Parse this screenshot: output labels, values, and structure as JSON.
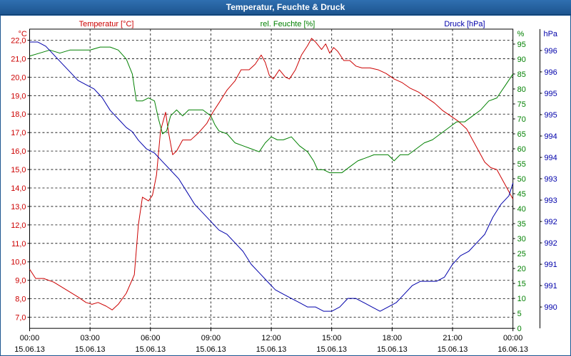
{
  "window_title": "Temperatur, Feuchte & Druck",
  "chart_data": {
    "type": "line",
    "title": "Temperatur, Feuchte & Druck",
    "x_labels": [
      {
        "time": "00:00",
        "date": "15.06.13"
      },
      {
        "time": "03:00",
        "date": "15.06.13"
      },
      {
        "time": "06:00",
        "date": "15.06.13"
      },
      {
        "time": "09:00",
        "date": "15.06.13"
      },
      {
        "time": "12:00",
        "date": "15.06.13"
      },
      {
        "time": "15:00",
        "date": "15.06.13"
      },
      {
        "time": "18:00",
        "date": "15.06.13"
      },
      {
        "time": "21:00",
        "date": "15.06.13"
      },
      {
        "time": "00:00",
        "date": "16.06.13"
      }
    ],
    "xlim_hours": [
      0,
      24
    ],
    "axes": {
      "temperature": {
        "unit": "°C",
        "legend": "Temperatur [°C]",
        "color": "#cc0000",
        "ylim": [
          6.4,
          22.6
        ],
        "ticks": [
          "7,0",
          "8,0",
          "9,0",
          "10,0",
          "11,0",
          "12,0",
          "13,0",
          "14,0",
          "15,0",
          "16,0",
          "17,0",
          "18,0",
          "19,0",
          "20,0",
          "21,0",
          "22,0"
        ]
      },
      "humidity": {
        "unit": "%",
        "legend": "rel. Feuchte [%]",
        "color": "#008000",
        "ylim": [
          0,
          100
        ],
        "ticks": [
          "0",
          "5",
          "10",
          "15",
          "20",
          "25",
          "30",
          "35",
          "40",
          "45",
          "50",
          "55",
          "60",
          "65",
          "70",
          "75",
          "80",
          "85",
          "90",
          "95"
        ]
      },
      "pressure": {
        "unit": "hPa",
        "legend": "Druck [hPa]",
        "color": "#0000aa",
        "ylim": [
          989.5,
          996.5
        ],
        "ticks": [
          {
            "v": 990,
            "l": "990"
          },
          {
            "v": 990.5,
            "l": "991"
          },
          {
            "v": 991,
            "l": "991"
          },
          {
            "v": 991.5,
            "l": "992"
          },
          {
            "v": 992,
            "l": "992"
          },
          {
            "v": 992.5,
            "l": "993"
          },
          {
            "v": 993,
            "l": "993"
          },
          {
            "v": 993.5,
            "l": "994"
          },
          {
            "v": 994,
            "l": "994"
          },
          {
            "v": 994.5,
            "l": "995"
          },
          {
            "v": 995,
            "l": "995"
          },
          {
            "v": 995.5,
            "l": "996"
          },
          {
            "v": 996,
            "l": "996"
          }
        ]
      }
    },
    "series": [
      {
        "name": "Temperatur",
        "axis": "temperature",
        "points": [
          [
            0,
            9.6
          ],
          [
            0.3,
            9.1
          ],
          [
            0.7,
            9.1
          ],
          [
            1.2,
            8.9
          ],
          [
            1.8,
            8.5
          ],
          [
            2.4,
            8.1
          ],
          [
            2.8,
            7.8
          ],
          [
            3.1,
            7.7
          ],
          [
            3.4,
            7.8
          ],
          [
            3.8,
            7.6
          ],
          [
            4.1,
            7.4
          ],
          [
            4.4,
            7.7
          ],
          [
            4.8,
            8.3
          ],
          [
            5.2,
            9.3
          ],
          [
            5.4,
            12.0
          ],
          [
            5.6,
            13.5
          ],
          [
            5.9,
            13.3
          ],
          [
            6.1,
            13.6
          ],
          [
            6.3,
            14.7
          ],
          [
            6.5,
            17.1
          ],
          [
            6.75,
            18.1
          ],
          [
            6.9,
            17.0
          ],
          [
            7.1,
            15.8
          ],
          [
            7.3,
            16.0
          ],
          [
            7.6,
            16.6
          ],
          [
            8.0,
            16.6
          ],
          [
            8.4,
            17.0
          ],
          [
            8.8,
            17.5
          ],
          [
            9.1,
            18.1
          ],
          [
            9.4,
            18.6
          ],
          [
            9.8,
            19.3
          ],
          [
            10.2,
            19.8
          ],
          [
            10.5,
            20.4
          ],
          [
            10.9,
            20.4
          ],
          [
            11.2,
            20.7
          ],
          [
            11.5,
            21.2
          ],
          [
            11.7,
            20.8
          ],
          [
            11.9,
            20.1
          ],
          [
            12.1,
            19.9
          ],
          [
            12.4,
            20.4
          ],
          [
            12.7,
            20.0
          ],
          [
            12.9,
            19.9
          ],
          [
            13.2,
            20.4
          ],
          [
            13.5,
            21.2
          ],
          [
            13.8,
            21.7
          ],
          [
            14.0,
            22.1
          ],
          [
            14.2,
            21.9
          ],
          [
            14.5,
            21.5
          ],
          [
            14.7,
            21.8
          ],
          [
            14.9,
            21.3
          ],
          [
            15.1,
            21.6
          ],
          [
            15.3,
            21.4
          ],
          [
            15.6,
            20.9
          ],
          [
            15.9,
            20.9
          ],
          [
            16.2,
            20.6
          ],
          [
            16.5,
            20.5
          ],
          [
            16.9,
            20.5
          ],
          [
            17.3,
            20.4
          ],
          [
            17.7,
            20.2
          ],
          [
            18.1,
            19.9
          ],
          [
            18.5,
            19.7
          ],
          [
            18.9,
            19.4
          ],
          [
            19.3,
            19.2
          ],
          [
            19.7,
            18.9
          ],
          [
            20.1,
            18.6
          ],
          [
            20.5,
            18.2
          ],
          [
            20.9,
            17.9
          ],
          [
            21.3,
            17.6
          ],
          [
            21.7,
            17.2
          ],
          [
            22.0,
            16.6
          ],
          [
            22.3,
            16.0
          ],
          [
            22.6,
            15.4
          ],
          [
            22.9,
            15.1
          ],
          [
            23.2,
            15.0
          ],
          [
            23.5,
            14.4
          ],
          [
            23.8,
            13.8
          ],
          [
            24.0,
            13.4
          ]
        ]
      },
      {
        "name": "rel. Feuchte",
        "axis": "humidity",
        "points": [
          [
            0,
            91
          ],
          [
            0.5,
            92
          ],
          [
            1.0,
            93
          ],
          [
            1.5,
            92
          ],
          [
            2.0,
            93
          ],
          [
            2.5,
            93
          ],
          [
            3.0,
            93
          ],
          [
            3.5,
            94
          ],
          [
            4.0,
            94
          ],
          [
            4.4,
            93
          ],
          [
            4.8,
            90
          ],
          [
            5.1,
            85
          ],
          [
            5.3,
            76
          ],
          [
            5.6,
            76
          ],
          [
            5.9,
            77
          ],
          [
            6.2,
            76
          ],
          [
            6.4,
            70
          ],
          [
            6.6,
            65
          ],
          [
            6.8,
            66
          ],
          [
            7.0,
            71
          ],
          [
            7.3,
            73
          ],
          [
            7.6,
            71
          ],
          [
            7.9,
            73
          ],
          [
            8.2,
            73
          ],
          [
            8.6,
            73
          ],
          [
            9.0,
            71
          ],
          [
            9.2,
            68
          ],
          [
            9.4,
            66
          ],
          [
            9.8,
            65
          ],
          [
            10.2,
            62
          ],
          [
            10.6,
            61
          ],
          [
            11.0,
            60
          ],
          [
            11.4,
            59
          ],
          [
            11.7,
            62
          ],
          [
            12.0,
            64
          ],
          [
            12.3,
            63
          ],
          [
            12.6,
            63
          ],
          [
            13.0,
            64
          ],
          [
            13.4,
            61
          ],
          [
            13.8,
            59
          ],
          [
            14.1,
            56
          ],
          [
            14.3,
            53
          ],
          [
            14.6,
            53
          ],
          [
            14.9,
            52
          ],
          [
            15.1,
            52
          ],
          [
            15.5,
            52
          ],
          [
            15.9,
            54
          ],
          [
            16.3,
            56
          ],
          [
            16.7,
            57
          ],
          [
            17.1,
            58
          ],
          [
            17.5,
            58
          ],
          [
            17.8,
            58
          ],
          [
            18.1,
            56
          ],
          [
            18.4,
            58
          ],
          [
            18.8,
            58
          ],
          [
            19.2,
            60
          ],
          [
            19.6,
            62
          ],
          [
            20.0,
            63
          ],
          [
            20.4,
            65
          ],
          [
            20.8,
            67
          ],
          [
            21.2,
            69
          ],
          [
            21.6,
            69
          ],
          [
            22.0,
            71
          ],
          [
            22.4,
            73
          ],
          [
            22.8,
            76
          ],
          [
            23.2,
            77
          ],
          [
            23.6,
            81
          ],
          [
            24.0,
            85
          ]
        ]
      },
      {
        "name": "Druck",
        "axis": "pressure",
        "points": [
          [
            0,
            996.2
          ],
          [
            0.4,
            996.2
          ],
          [
            0.8,
            996.1
          ],
          [
            1.2,
            995.9
          ],
          [
            1.6,
            995.7
          ],
          [
            2.0,
            995.5
          ],
          [
            2.4,
            995.3
          ],
          [
            2.8,
            995.2
          ],
          [
            3.2,
            995.1
          ],
          [
            3.6,
            994.9
          ],
          [
            4.0,
            994.6
          ],
          [
            4.4,
            994.4
          ],
          [
            4.8,
            994.2
          ],
          [
            5.1,
            994.1
          ],
          [
            5.4,
            993.9
          ],
          [
            5.8,
            993.7
          ],
          [
            6.2,
            993.6
          ],
          [
            6.6,
            993.4
          ],
          [
            7.0,
            993.2
          ],
          [
            7.4,
            993.0
          ],
          [
            7.8,
            992.7
          ],
          [
            8.2,
            992.4
          ],
          [
            8.6,
            992.2
          ],
          [
            9.0,
            992.0
          ],
          [
            9.4,
            991.8
          ],
          [
            9.8,
            991.7
          ],
          [
            10.2,
            991.5
          ],
          [
            10.6,
            991.3
          ],
          [
            11.0,
            991.0
          ],
          [
            11.4,
            990.8
          ],
          [
            11.8,
            990.6
          ],
          [
            12.2,
            990.4
          ],
          [
            12.6,
            990.3
          ],
          [
            13.0,
            990.2
          ],
          [
            13.4,
            990.1
          ],
          [
            13.8,
            990.0
          ],
          [
            14.2,
            990.0
          ],
          [
            14.6,
            989.9
          ],
          [
            15.0,
            989.9
          ],
          [
            15.4,
            990.0
          ],
          [
            15.8,
            990.2
          ],
          [
            16.2,
            990.2
          ],
          [
            16.6,
            990.1
          ],
          [
            17.0,
            990.0
          ],
          [
            17.4,
            989.9
          ],
          [
            17.8,
            990.0
          ],
          [
            18.2,
            990.1
          ],
          [
            18.6,
            990.3
          ],
          [
            19.0,
            990.5
          ],
          [
            19.4,
            990.6
          ],
          [
            19.8,
            990.6
          ],
          [
            20.2,
            990.6
          ],
          [
            20.6,
            990.7
          ],
          [
            21.0,
            991.0
          ],
          [
            21.4,
            991.2
          ],
          [
            21.8,
            991.3
          ],
          [
            22.2,
            991.5
          ],
          [
            22.6,
            991.7
          ],
          [
            23.0,
            992.1
          ],
          [
            23.4,
            992.4
          ],
          [
            23.8,
            992.6
          ],
          [
            24.0,
            992.9
          ]
        ]
      }
    ]
  }
}
